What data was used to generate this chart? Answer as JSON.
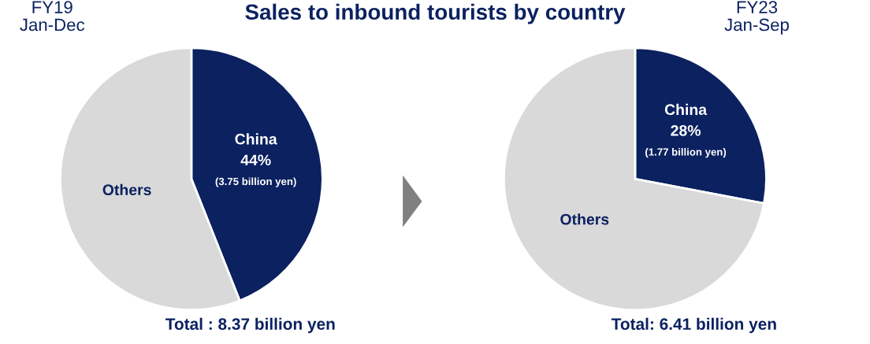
{
  "chart_data": [
    {
      "type": "pie",
      "title": "Sales to inbound tourists by country",
      "subtitle": "FY19\nJan-Dec",
      "categories": [
        "China",
        "Others"
      ],
      "values": [
        44,
        56
      ],
      "value_labels": [
        "44%",
        null
      ],
      "colors": [
        "#0b2160",
        "#d9d9d9"
      ],
      "annotations": [
        "(3.75 billion yen)",
        "Total : 8.37 billion yen"
      ]
    },
    {
      "type": "pie",
      "subtitle": "FY23\nJan-Sep",
      "categories": [
        "China",
        "Others"
      ],
      "values": [
        28,
        72
      ],
      "value_labels": [
        "28%",
        null
      ],
      "colors": [
        "#0b2160",
        "#d9d9d9"
      ],
      "annotations": [
        "(1.77 billion yen)",
        "Total: 6.41 billion yen"
      ]
    }
  ]
}
